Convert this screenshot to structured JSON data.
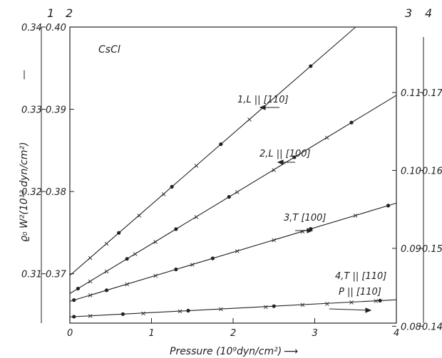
{
  "chart_data": {
    "type": "line",
    "title": "CsCl",
    "xlabel": "Pressure (10⁹dyn/cm²)",
    "ylabel": "ϱ₀ W²(10¹² dyn/cm²)",
    "xlim": [
      0,
      4
    ],
    "x_ticks": [
      "0",
      "1",
      "2",
      "3",
      "4"
    ],
    "axes": [
      {
        "id": "1",
        "side": "left-outer",
        "label": "1",
        "range": [
          0.304,
          0.34
        ],
        "ticks": [
          "0.31",
          "0.32",
          "0.33",
          "0.34"
        ]
      },
      {
        "id": "2",
        "side": "left-inner",
        "label": "2",
        "range": [
          0.364,
          0.4
        ],
        "ticks": [
          "0.37",
          "0.38",
          "0.39",
          "0.40"
        ]
      },
      {
        "id": "3",
        "side": "right-inner",
        "label": "3",
        "range": [
          0.0804,
          0.1184
        ],
        "ticks": [
          "0.08",
          "0.09",
          "0.10",
          "0.11"
        ]
      },
      {
        "id": "4",
        "side": "right-outer",
        "label": "4",
        "range": [
          0.1404,
          0.1784
        ],
        "ticks": [
          "0.14",
          "0.15",
          "0.16",
          "0.17"
        ]
      }
    ],
    "series": [
      {
        "name": "1,L || [110]",
        "axis": "1",
        "x": [
          0,
          4
        ],
        "y": [
          0.3098,
          0.3443
        ],
        "dots": [
          0.6,
          1.25,
          1.85,
          2.95
        ],
        "crosses": [
          0.25,
          0.45,
          0.85,
          1.15,
          1.55,
          2.2
        ]
      },
      {
        "name": "2,L || [100]",
        "axis": "2",
        "x": [
          0,
          4
        ],
        "y": [
          0.3676,
          0.3917
        ],
        "dots": [
          0.1,
          0.7,
          1.3,
          1.95,
          2.75,
          3.45
        ],
        "crosses": [
          0.25,
          0.45,
          0.8,
          1.05,
          1.55,
          2.05,
          2.5,
          3.15
        ]
      },
      {
        "name": "3,T [100]",
        "axis": "3",
        "x": [
          0,
          4
        ],
        "y": [
          0.0832,
          0.0958
        ],
        "dots": [
          0.05,
          0.45,
          1.3,
          1.75,
          2.95,
          3.9
        ],
        "crosses": [
          0.25,
          0.7,
          1.05,
          1.5,
          2.05,
          2.5,
          2.85,
          3.5
        ]
      },
      {
        "name": "4,T || [110] P || [110]",
        "axis": "4",
        "x": [
          0,
          4
        ],
        "y": [
          0.1412,
          0.1434
        ],
        "dots": [
          0.05,
          0.65,
          1.45,
          2.5,
          3.8
        ],
        "crosses": [
          0.25,
          0.9,
          1.35,
          1.85,
          2.4,
          2.85,
          3.15,
          3.45,
          3.75
        ]
      }
    ],
    "grid": false,
    "legend": "inline labels with arrows"
  }
}
